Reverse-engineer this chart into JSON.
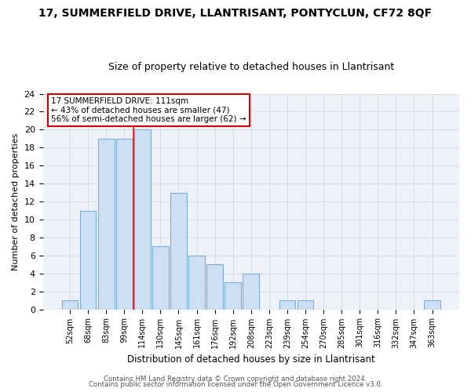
{
  "title": "17, SUMMERFIELD DRIVE, LLANTRISANT, PONTYCLUN, CF72 8QF",
  "subtitle": "Size of property relative to detached houses in Llantrisant",
  "xlabel": "Distribution of detached houses by size in Llantrisant",
  "ylabel": "Number of detached properties",
  "footer_line1": "Contains HM Land Registry data © Crown copyright and database right 2024.",
  "footer_line2": "Contains public sector information licensed under the Open Government Licence v3.0.",
  "annotation_line1": "17 SUMMERFIELD DRIVE: 111sqm",
  "annotation_line2": "← 43% of detached houses are smaller (47)",
  "annotation_line3": "56% of semi-detached houses are larger (62) →",
  "bar_labels": [
    "52sqm",
    "68sqm",
    "83sqm",
    "99sqm",
    "114sqm",
    "130sqm",
    "145sqm",
    "161sqm",
    "176sqm",
    "192sqm",
    "208sqm",
    "223sqm",
    "239sqm",
    "254sqm",
    "270sqm",
    "285sqm",
    "301sqm",
    "316sqm",
    "332sqm",
    "347sqm",
    "363sqm"
  ],
  "bar_values": [
    1,
    11,
    19,
    19,
    20,
    7,
    13,
    6,
    5,
    3,
    4,
    0,
    1,
    1,
    0,
    0,
    0,
    0,
    0,
    0,
    1
  ],
  "bar_color": "#ccdff5",
  "bar_edgecolor": "#7aaed6",
  "grid_color": "#d0d8e8",
  "bg_color": "#ffffff",
  "plot_bg_color": "#eef2f8",
  "red_line_x": 3.5,
  "annotation_box_color": "#ffffff",
  "annotation_box_edgecolor": "#cc0000",
  "ylim": [
    0,
    24
  ],
  "yticks": [
    0,
    2,
    4,
    6,
    8,
    10,
    12,
    14,
    16,
    18,
    20,
    22,
    24
  ],
  "title_fontsize": 10,
  "subtitle_fontsize": 9
}
